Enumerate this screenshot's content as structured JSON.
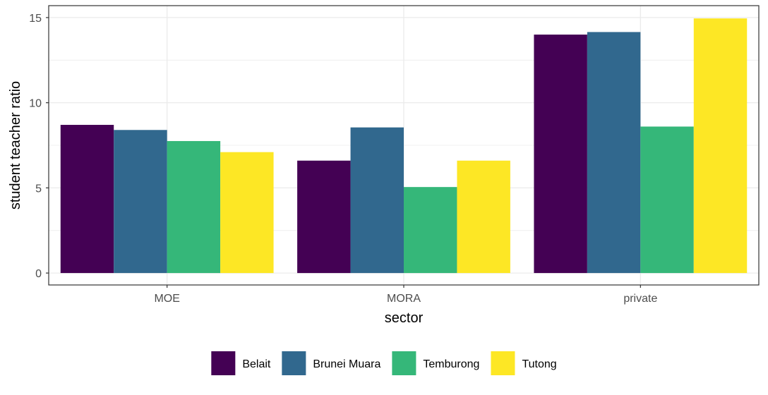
{
  "chart_data": {
    "type": "bar",
    "title": "",
    "xlabel": "sector",
    "ylabel": "student teacher ratio",
    "categories": [
      "MOE",
      "MORA",
      "private"
    ],
    "series": [
      {
        "name": "Belait",
        "values": [
          8.7,
          6.6,
          14.0
        ],
        "color": "#440154"
      },
      {
        "name": "Brunei Muara",
        "values": [
          8.4,
          8.55,
          14.15
        ],
        "color": "#31688E"
      },
      {
        "name": "Temburong",
        "values": [
          7.75,
          5.05,
          8.6
        ],
        "color": "#35B779"
      },
      {
        "name": "Tutong",
        "values": [
          7.1,
          6.6,
          14.95
        ],
        "color": "#FDE725"
      }
    ],
    "ylim": [
      -0.7,
      15.7
    ],
    "yticks": [
      0,
      5,
      10,
      15
    ],
    "grid": true,
    "legend_position": "bottom",
    "colors": {
      "grid": "#EBEBEB",
      "panel_border": "#333333",
      "tick_text": "#4D4D4D"
    }
  }
}
